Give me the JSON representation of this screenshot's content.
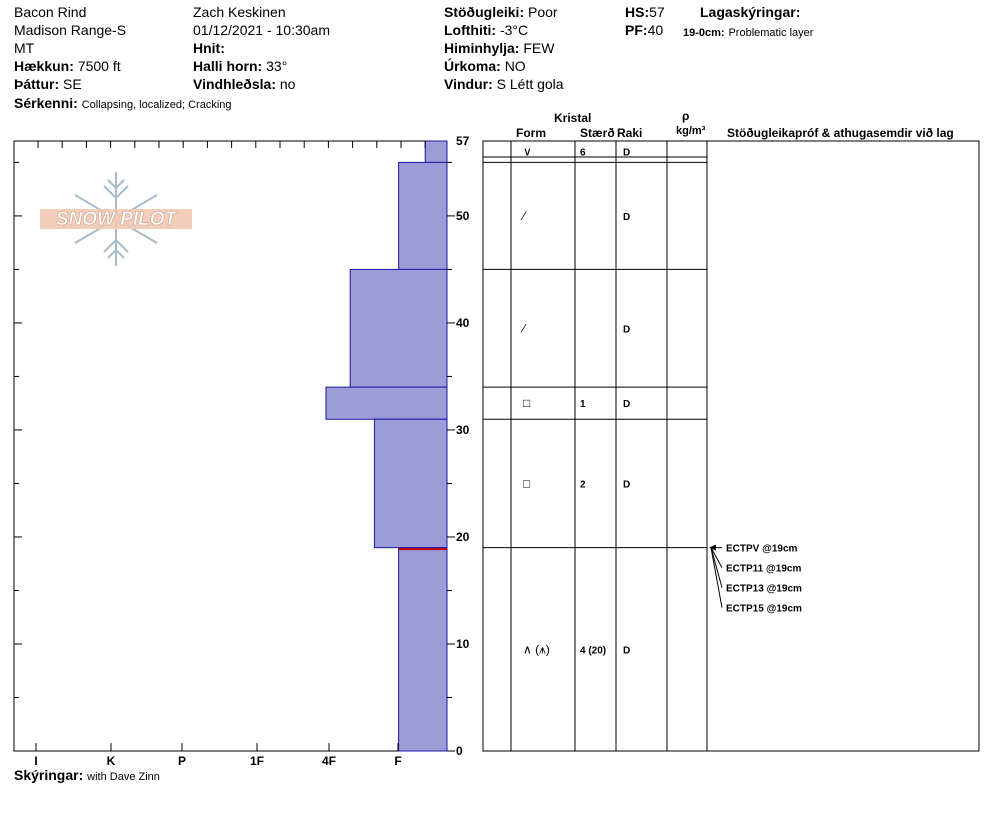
{
  "header": {
    "location": "Bacon Rind",
    "range": "Madison Range-S",
    "state": "MT",
    "elevation_label": "Hækkun:",
    "elevation": "7500 ft",
    "aspect_label": "Þáttur:",
    "aspect": "SE",
    "features_label": "Sérkenni:",
    "features": "Collapsing, localized;  Cracking",
    "observer": "Zach Keskinen",
    "datetime": "01/12/2021 - 10:30am",
    "coords_label": "Hnit:",
    "coords": "",
    "slope_label": "Halli horn:",
    "slope": "33°",
    "wind_loading_label": "Vindhleðsla:",
    "wind_loading": "no",
    "stability_label": "Stöðugleiki:",
    "stability": "Poor",
    "air_temp_label": "Lofthiti:",
    "air_temp": "-3°C",
    "sky_label": "Himinhylja:",
    "sky": "FEW",
    "precip_label": "Úrkoma:",
    "precip": "NO",
    "wind_label": "Vindur:",
    "wind": "S Létt gola",
    "hs_label": "HS:",
    "hs": "57",
    "pf_label": "PF:",
    "pf": "40",
    "layer_notes_label": "Lagaskýringar:",
    "layer_note_range": "19-0cm:",
    "layer_note_text": "Problematic layer"
  },
  "logo": {
    "text": "SNOW PILOT"
  },
  "footer": {
    "notes_label": "Skýringar:",
    "notes": "with Dave Zinn"
  },
  "table": {
    "crystal_header": "Kristal",
    "form_header": "Form",
    "size_header": "Stærð",
    "moisture_header": "Raki",
    "density_symbol": "ρ",
    "density_unit": "kg/m³",
    "comments_header": "Stöðugleikapróf & athugasemdir við lag",
    "layers": [
      {
        "top": 57,
        "bottom": 55,
        "form": "∨",
        "size": "6",
        "moisture": "D"
      },
      {
        "top": 55,
        "bottom": 45,
        "form": "⁄",
        "size": "",
        "moisture": "D"
      },
      {
        "top": 45,
        "bottom": 34,
        "form": "⁄",
        "size": "",
        "moisture": "D"
      },
      {
        "top": 34,
        "bottom": 31,
        "form": "□",
        "size": "1",
        "moisture": "D"
      },
      {
        "top": 31,
        "bottom": 19,
        "form": "□",
        "size": "2",
        "moisture": "D"
      },
      {
        "top": 19,
        "bottom": 0,
        "form": "∧ (⩚)",
        "size": "4 (20)",
        "moisture": "D"
      }
    ],
    "tests": [
      "ECTPV @19cm",
      "ECTP11 @19cm",
      "ECTP13 @19cm",
      "ECTP15 @19cm"
    ]
  },
  "chart_data": {
    "type": "bar",
    "orientation": "horizontal",
    "y_axis": {
      "min": 0,
      "max": 57,
      "ticks": [
        "0",
        "10",
        "20",
        "30",
        "40",
        "50",
        "57"
      ]
    },
    "x_axis": {
      "categories": [
        "I",
        "K",
        "P",
        "1F",
        "4F",
        "F"
      ]
    },
    "hardness_layers": [
      {
        "top": 57,
        "bottom": 55,
        "hardness": "F-"
      },
      {
        "top": 55,
        "bottom": 45,
        "hardness": "F"
      },
      {
        "top": 45,
        "bottom": 34,
        "hardness": "F+"
      },
      {
        "top": 34,
        "bottom": 31,
        "hardness": "4F"
      },
      {
        "top": 31,
        "bottom": 19,
        "hardness": "4F-"
      },
      {
        "top": 19,
        "bottom": 0,
        "hardness": "F"
      }
    ],
    "hardness_widths": [
      0.45,
      1.0,
      2.0,
      2.5,
      1.5,
      1.0
    ],
    "problem_layer_depth": 19,
    "bar_color": "#9c9cd8",
    "bar_stroke": "#1a1aa0",
    "problem_layer_color": "#c00000"
  }
}
